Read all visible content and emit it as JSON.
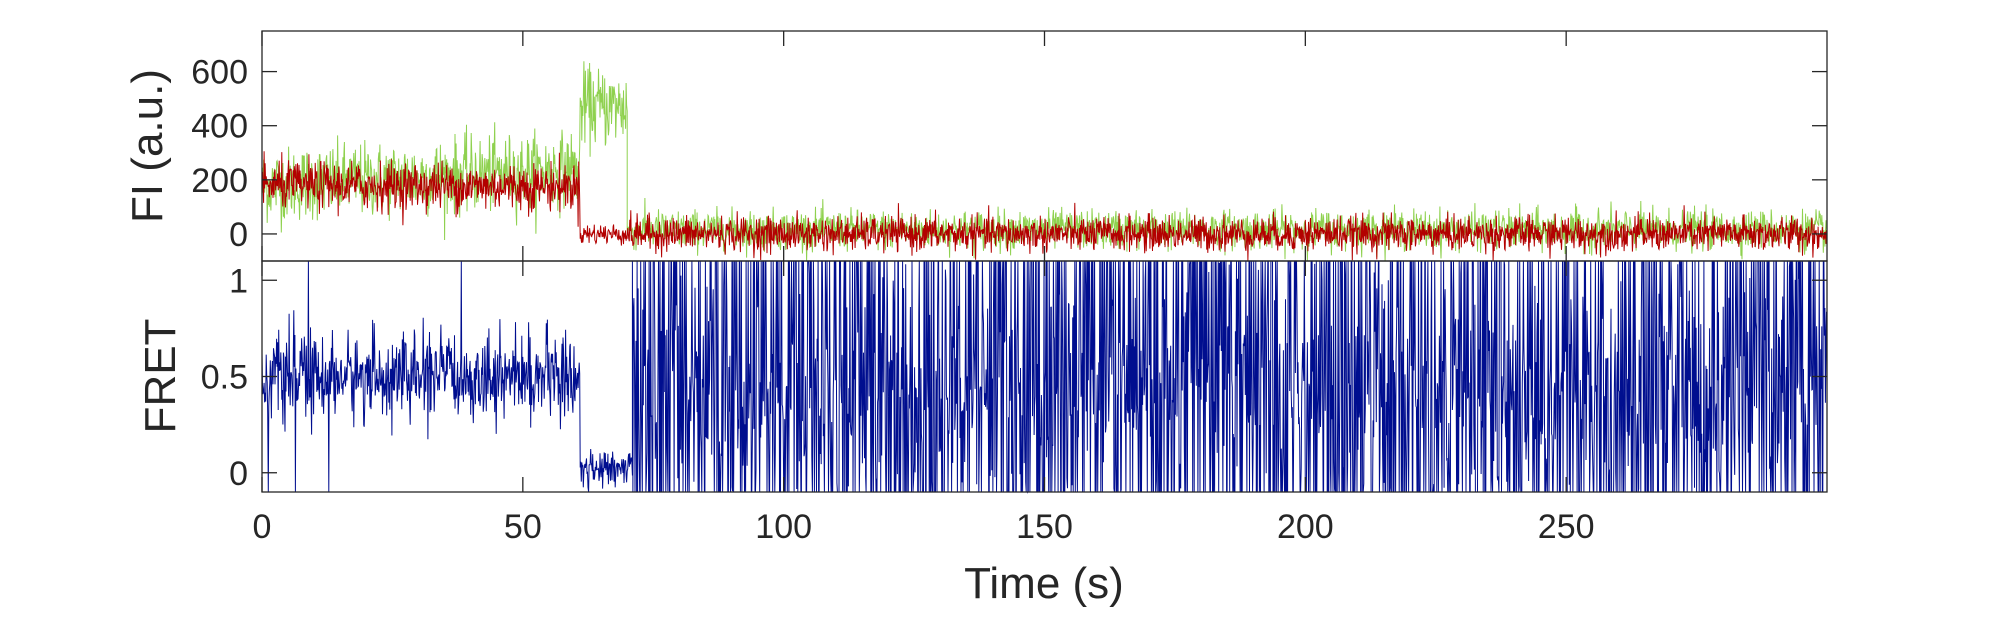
{
  "chart_data": [
    {
      "type": "line",
      "panel": "top",
      "ylabel": "FI (a.u.)",
      "xlim": [
        0,
        300
      ],
      "ylim": [
        -100,
        750
      ],
      "yticks": [
        0,
        200,
        400,
        600
      ],
      "grid": false,
      "series": [
        {
          "color": "#8fd14f",
          "segments": [
            {
              "t0": 0,
              "t1": 61,
              "mean_start": 180,
              "mean_end": 240,
              "noise": 85
            },
            {
              "t0": 61,
              "t1": 70,
              "mean_start": 470,
              "mean_end": 470,
              "noise": 90
            },
            {
              "t0": 70,
              "t1": 300,
              "mean_start": 15,
              "mean_end": 15,
              "noise": 45
            }
          ]
        },
        {
          "color": "#b30000",
          "segments": [
            {
              "t0": 0,
              "t1": 61,
              "mean_start": 180,
              "mean_end": 175,
              "noise": 55
            },
            {
              "t0": 61,
              "t1": 70,
              "mean_start": 0,
              "mean_end": 0,
              "noise": 25
            },
            {
              "t0": 70,
              "t1": 300,
              "mean_start": 0,
              "mean_end": 0,
              "noise": 40
            }
          ]
        }
      ]
    },
    {
      "type": "line",
      "panel": "bottom",
      "xlabel": "Time (s)",
      "ylabel": "FRET",
      "xlim": [
        0,
        300
      ],
      "ylim": [
        -0.1,
        1.1
      ],
      "xticks": [
        0,
        50,
        100,
        150,
        200,
        250
      ],
      "yticks": [
        0,
        0.5,
        1
      ],
      "grid": false,
      "series": [
        {
          "color": "#000e8f",
          "segments": [
            {
              "t0": 0,
              "t1": 61,
              "mean": 0.5,
              "noise": 0.12
            },
            {
              "t0": 61,
              "t1": 71,
              "mean": 0.02,
              "noise": 0.05
            },
            {
              "t0": 71,
              "t1": 300,
              "mean": 0.45,
              "noise": 0.55
            }
          ]
        }
      ]
    }
  ]
}
